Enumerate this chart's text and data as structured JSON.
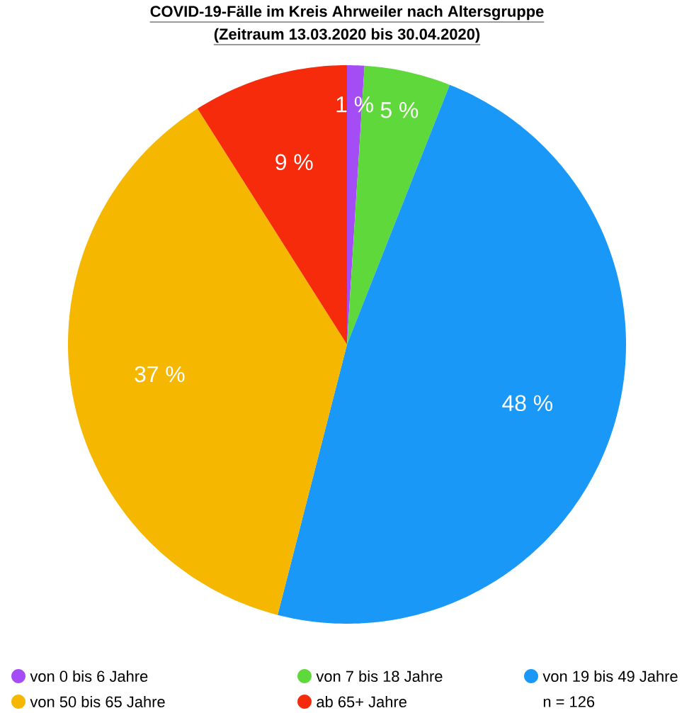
{
  "chart_data": {
    "type": "pie",
    "title": "COVID-19-Fälle im Kreis Ahrweiler nach Altersgruppe",
    "subtitle": "(Zeitraum 13.03.2020 bis 30.04.2020)",
    "categories": [
      "von 0 bis 6 Jahre",
      "von 7 bis 18 Jahre",
      "von 19 bis 49 Jahre",
      "von 50 bis 65 Jahre",
      "ab 65+ Jahre"
    ],
    "values": [
      1,
      5,
      48,
      37,
      9
    ],
    "colors": [
      "#a54df5",
      "#5fd83c",
      "#1a98f8",
      "#f5b700",
      "#f52b0c"
    ],
    "value_labels": [
      "1 %",
      "5 %",
      "48 %",
      "37 %",
      "9 %"
    ],
    "legend": "bottom",
    "annotations": [
      "n = 126"
    ]
  }
}
